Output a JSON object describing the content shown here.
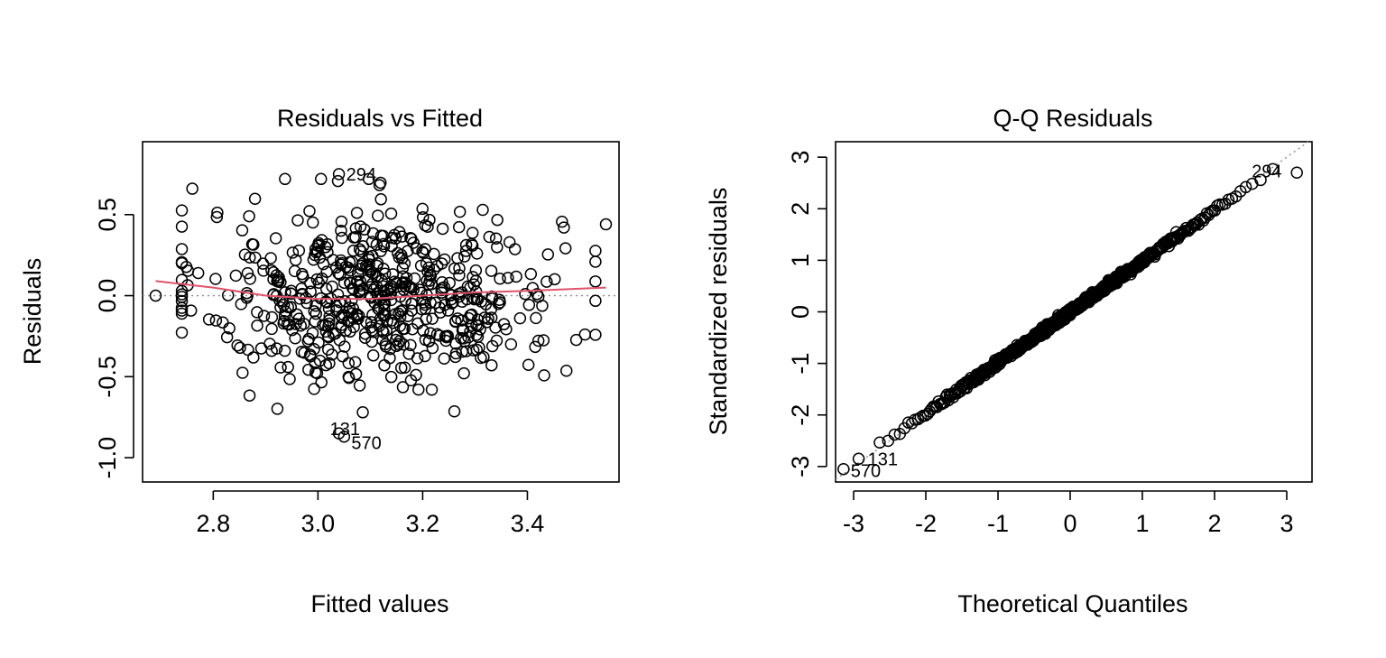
{
  "colors": {
    "smoother": "#df536b",
    "points": "#000000",
    "reference": "#8c8c8c"
  },
  "chart_data": [
    {
      "type": "scatter",
      "title": "Residuals vs Fitted",
      "xlabel": "Fitted values",
      "ylabel": "Residuals",
      "xlim": [
        2.665,
        3.575
      ],
      "ylim": [
        -1.15,
        0.95
      ],
      "xticks": [
        2.8,
        3.0,
        3.2,
        3.4
      ],
      "xtick_labels": [
        "2.8",
        "3.0",
        "3.2",
        "3.4"
      ],
      "yticks": [
        -1.0,
        -0.5,
        0.0,
        0.5
      ],
      "ytick_labels": [
        "-1.0",
        "-0.5",
        "0.0",
        "0.5"
      ],
      "reference_y": 0,
      "smoother": [
        [
          2.69,
          0.09
        ],
        [
          2.8,
          0.05
        ],
        [
          2.9,
          0.0
        ],
        [
          3.0,
          -0.02
        ],
        [
          3.1,
          -0.02
        ],
        [
          3.2,
          0.0
        ],
        [
          3.3,
          0.02
        ],
        [
          3.4,
          0.03
        ],
        [
          3.55,
          0.05
        ]
      ],
      "labeled_points": [
        {
          "label": "294",
          "x": 3.04,
          "y": 0.75
        },
        {
          "label": "131",
          "x": 3.04,
          "y": -0.85
        },
        {
          "label": "570",
          "x": 3.05,
          "y": -0.87
        }
      ],
      "n_points": 600
    },
    {
      "type": "scatter",
      "title": "Q-Q Residuals",
      "xlabel": "Theoretical Quantiles",
      "ylabel": "Standardized residuals",
      "xlim": [
        -3.25,
        3.35
      ],
      "ylim": [
        -3.3,
        3.3
      ],
      "xticks": [
        -3,
        -2,
        -1,
        0,
        1,
        2,
        3
      ],
      "xtick_labels": [
        "-3",
        "-2",
        "-1",
        "0",
        "1",
        "2",
        "3"
      ],
      "yticks": [
        -3,
        -2,
        -1,
        0,
        1,
        2,
        3
      ],
      "ytick_labels": [
        "-3",
        "-2",
        "-1",
        "0",
        "1",
        "2",
        "3"
      ],
      "reference_line": {
        "slope": 1,
        "intercept": 0
      },
      "labeled_points": [
        {
          "label": "294",
          "x": 3.14,
          "y": 2.7
        },
        {
          "label": "131",
          "x": -2.93,
          "y": -2.85
        },
        {
          "label": "570",
          "x": -3.14,
          "y": -3.05
        }
      ],
      "n_points": 600
    }
  ]
}
